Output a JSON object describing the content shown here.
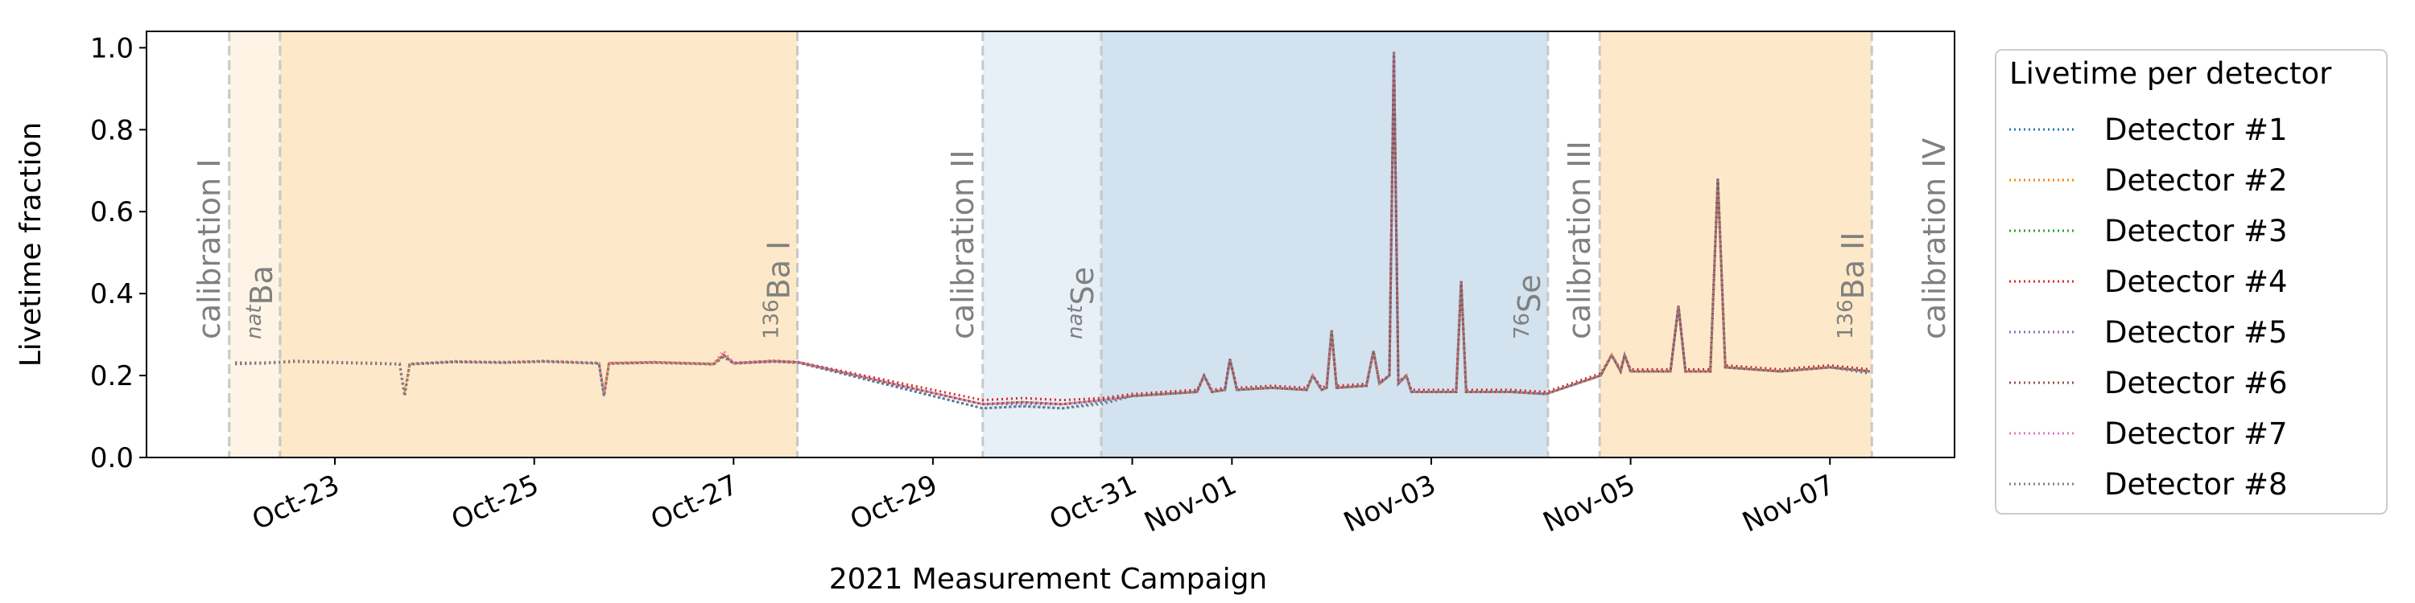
{
  "chart_data": {
    "type": "line",
    "xlabel": "2021 Measurement Campaign",
    "ylabel": "Livetime fraction",
    "xlim": [
      21.11,
      39.25
    ],
    "ylim": [
      0,
      1.04
    ],
    "xticks": [
      {
        "value": 23,
        "label": "Oct-23"
      },
      {
        "value": 25,
        "label": "Oct-25"
      },
      {
        "value": 27,
        "label": "Oct-27"
      },
      {
        "value": 29,
        "label": "Oct-29"
      },
      {
        "value": 31,
        "label": "Oct-31"
      },
      {
        "value": 32,
        "label": "Nov-01"
      },
      {
        "value": 34,
        "label": "Nov-03"
      },
      {
        "value": 36,
        "label": "Nov-05"
      },
      {
        "value": 38,
        "label": "Nov-07"
      }
    ],
    "yticks": [
      {
        "value": 0,
        "label": "0.0"
      },
      0.2,
      0.4,
      0.6,
      0.8,
      {
        "value": 1,
        "label": "1.0"
      }
    ],
    "legend_title": "Livetime per detector",
    "legend_loc": "outside upper right",
    "spans": [
      {
        "start": 21.94,
        "end": 22.45,
        "color": "#fdf4e6",
        "label_sup": "nat",
        "label": "Ba"
      },
      {
        "start": 22.45,
        "end": 27.64,
        "color": "#fde9c9",
        "label_sup": "136",
        "label": "Ba I"
      },
      {
        "start": 29.5,
        "end": 30.69,
        "color": "#e7eff7",
        "label_sup": "nat",
        "label": "Se"
      },
      {
        "start": 30.69,
        "end": 35.17,
        "color": "#d2e2ef",
        "label_sup": "76",
        "label": "Se"
      },
      {
        "start": 35.69,
        "end": 38.42,
        "color": "#fde9c9",
        "label_sup": "136",
        "label": "Ba II"
      }
    ],
    "calibrations": [
      {
        "x": 21.94,
        "label": "calibration I"
      },
      {
        "x": 29.5,
        "label": "calibration II"
      },
      {
        "x": 35.69,
        "label": "calibration III"
      },
      {
        "x": 39.25,
        "label": "calibration IV"
      }
    ],
    "x": [
      22.0,
      22.3,
      22.6,
      23.0,
      23.4,
      23.65,
      23.7,
      23.75,
      24.2,
      24.7,
      25.1,
      25.65,
      25.7,
      25.75,
      26.2,
      26.8,
      26.9,
      27.0,
      27.4,
      27.65,
      29.5,
      29.9,
      30.3,
      30.7,
      31.0,
      31.65,
      31.72,
      31.8,
      31.93,
      31.98,
      32.05,
      32.4,
      32.75,
      32.81,
      32.9,
      32.95,
      33.0,
      33.05,
      33.35,
      33.42,
      33.48,
      33.58,
      33.625,
      33.67,
      33.75,
      33.8,
      34.25,
      34.3,
      34.35,
      34.8,
      35.15,
      35.7,
      35.81,
      35.9,
      35.94,
      36.0,
      36.4,
      36.48,
      36.55,
      36.8,
      36.875,
      36.95,
      37.5,
      38.0,
      38.4
    ],
    "series": [
      {
        "name": "Detector #1",
        "color": "#1f77b4",
        "values": [
          0.228,
          0.23,
          0.234,
          0.231,
          0.229,
          0.227,
          0.15,
          0.227,
          0.233,
          0.231,
          0.234,
          0.229,
          0.15,
          0.229,
          0.231,
          0.227,
          0.245,
          0.229,
          0.234,
          0.231,
          0.12,
          0.125,
          0.12,
          0.135,
          0.15,
          0.16,
          0.2,
          0.16,
          0.165,
          0.24,
          0.165,
          0.17,
          0.165,
          0.2,
          0.165,
          0.17,
          0.31,
          0.17,
          0.175,
          0.26,
          0.18,
          0.2,
          0.99,
          0.18,
          0.2,
          0.16,
          0.16,
          0.43,
          0.16,
          0.16,
          0.155,
          0.2,
          0.25,
          0.21,
          0.25,
          0.21,
          0.21,
          0.37,
          0.21,
          0.21,
          0.68,
          0.22,
          0.21,
          0.22,
          0.205
        ]
      },
      {
        "name": "Detector #2",
        "color": "#ff7f0e",
        "values": [
          0.23,
          0.232,
          0.235,
          0.232,
          0.23,
          0.228,
          0.16,
          0.228,
          0.234,
          0.232,
          0.235,
          0.23,
          0.16,
          0.23,
          0.232,
          0.228,
          0.25,
          0.23,
          0.235,
          0.232,
          0.13,
          0.135,
          0.13,
          0.14,
          0.15,
          0.16,
          0.2,
          0.16,
          0.165,
          0.24,
          0.165,
          0.17,
          0.165,
          0.2,
          0.165,
          0.17,
          0.31,
          0.17,
          0.175,
          0.26,
          0.18,
          0.2,
          0.99,
          0.18,
          0.2,
          0.16,
          0.16,
          0.43,
          0.16,
          0.16,
          0.155,
          0.2,
          0.25,
          0.21,
          0.25,
          0.21,
          0.21,
          0.37,
          0.21,
          0.21,
          0.68,
          0.22,
          0.21,
          0.22,
          0.21
        ]
      },
      {
        "name": "Detector #3",
        "color": "#2ca02c",
        "values": [
          0.23,
          0.23,
          0.235,
          0.233,
          0.23,
          0.228,
          0.15,
          0.228,
          0.234,
          0.232,
          0.235,
          0.23,
          0.15,
          0.23,
          0.232,
          0.228,
          0.25,
          0.23,
          0.235,
          0.232,
          0.13,
          0.135,
          0.13,
          0.14,
          0.15,
          0.16,
          0.2,
          0.16,
          0.165,
          0.24,
          0.165,
          0.17,
          0.165,
          0.2,
          0.165,
          0.17,
          0.31,
          0.17,
          0.175,
          0.26,
          0.18,
          0.2,
          0.99,
          0.18,
          0.2,
          0.16,
          0.16,
          0.43,
          0.16,
          0.16,
          0.155,
          0.2,
          0.25,
          0.21,
          0.25,
          0.21,
          0.21,
          0.37,
          0.21,
          0.21,
          0.68,
          0.22,
          0.21,
          0.22,
          0.21
        ]
      },
      {
        "name": "Detector #4",
        "color": "#d62728",
        "values": [
          0.232,
          0.23,
          0.236,
          0.232,
          0.231,
          0.228,
          0.15,
          0.229,
          0.234,
          0.233,
          0.235,
          0.231,
          0.15,
          0.23,
          0.233,
          0.228,
          0.25,
          0.231,
          0.236,
          0.233,
          0.14,
          0.145,
          0.14,
          0.145,
          0.155,
          0.165,
          0.2,
          0.165,
          0.17,
          0.24,
          0.17,
          0.175,
          0.17,
          0.2,
          0.17,
          0.175,
          0.31,
          0.175,
          0.18,
          0.26,
          0.185,
          0.2,
          0.99,
          0.185,
          0.2,
          0.165,
          0.165,
          0.43,
          0.165,
          0.165,
          0.16,
          0.205,
          0.25,
          0.215,
          0.25,
          0.215,
          0.215,
          0.37,
          0.215,
          0.215,
          0.68,
          0.225,
          0.215,
          0.225,
          0.215
        ]
      },
      {
        "name": "Detector #5",
        "color": "#9467bd",
        "values": [
          0.23,
          0.231,
          0.235,
          0.232,
          0.23,
          0.229,
          0.15,
          0.228,
          0.235,
          0.232,
          0.236,
          0.23,
          0.15,
          0.23,
          0.232,
          0.229,
          0.25,
          0.23,
          0.235,
          0.232,
          0.13,
          0.13,
          0.13,
          0.14,
          0.15,
          0.16,
          0.2,
          0.16,
          0.165,
          0.24,
          0.165,
          0.17,
          0.165,
          0.2,
          0.165,
          0.17,
          0.31,
          0.17,
          0.175,
          0.26,
          0.18,
          0.2,
          0.99,
          0.18,
          0.2,
          0.16,
          0.16,
          0.43,
          0.16,
          0.16,
          0.155,
          0.2,
          0.25,
          0.21,
          0.25,
          0.21,
          0.21,
          0.37,
          0.21,
          0.21,
          0.68,
          0.22,
          0.21,
          0.22,
          0.21
        ]
      },
      {
        "name": "Detector #6",
        "color": "#8c564b",
        "values": [
          0.229,
          0.23,
          0.234,
          0.232,
          0.229,
          0.228,
          0.15,
          0.228,
          0.233,
          0.232,
          0.234,
          0.23,
          0.15,
          0.229,
          0.232,
          0.228,
          0.25,
          0.23,
          0.234,
          0.232,
          0.13,
          0.135,
          0.13,
          0.14,
          0.15,
          0.16,
          0.2,
          0.16,
          0.165,
          0.24,
          0.165,
          0.17,
          0.165,
          0.2,
          0.165,
          0.17,
          0.31,
          0.17,
          0.175,
          0.26,
          0.18,
          0.2,
          0.99,
          0.18,
          0.2,
          0.16,
          0.16,
          0.43,
          0.16,
          0.16,
          0.155,
          0.2,
          0.25,
          0.21,
          0.25,
          0.21,
          0.21,
          0.37,
          0.21,
          0.21,
          0.68,
          0.22,
          0.21,
          0.22,
          0.21
        ]
      },
      {
        "name": "Detector #7",
        "color": "#e377c2",
        "values": [
          0.231,
          0.232,
          0.236,
          0.233,
          0.231,
          0.229,
          0.15,
          0.229,
          0.235,
          0.233,
          0.236,
          0.231,
          0.15,
          0.231,
          0.233,
          0.229,
          0.26,
          0.231,
          0.236,
          0.233,
          0.13,
          0.135,
          0.13,
          0.14,
          0.15,
          0.16,
          0.2,
          0.16,
          0.165,
          0.24,
          0.165,
          0.17,
          0.165,
          0.2,
          0.165,
          0.17,
          0.31,
          0.17,
          0.175,
          0.26,
          0.18,
          0.2,
          0.99,
          0.18,
          0.2,
          0.16,
          0.16,
          0.43,
          0.16,
          0.16,
          0.155,
          0.2,
          0.25,
          0.21,
          0.25,
          0.21,
          0.21,
          0.37,
          0.21,
          0.21,
          0.68,
          0.22,
          0.21,
          0.22,
          0.21
        ]
      },
      {
        "name": "Detector #8",
        "color": "#7f7f7f",
        "values": [
          0.23,
          0.23,
          0.235,
          0.232,
          0.23,
          0.228,
          0.15,
          0.228,
          0.234,
          0.232,
          0.235,
          0.23,
          0.15,
          0.23,
          0.232,
          0.228,
          0.25,
          0.23,
          0.235,
          0.232,
          0.12,
          0.125,
          0.12,
          0.13,
          0.15,
          0.16,
          0.2,
          0.16,
          0.165,
          0.24,
          0.165,
          0.17,
          0.165,
          0.2,
          0.165,
          0.17,
          0.31,
          0.17,
          0.175,
          0.26,
          0.18,
          0.2,
          0.99,
          0.18,
          0.2,
          0.16,
          0.16,
          0.43,
          0.16,
          0.16,
          0.155,
          0.2,
          0.25,
          0.21,
          0.25,
          0.21,
          0.21,
          0.37,
          0.21,
          0.21,
          0.68,
          0.22,
          0.21,
          0.22,
          0.21
        ]
      }
    ]
  }
}
